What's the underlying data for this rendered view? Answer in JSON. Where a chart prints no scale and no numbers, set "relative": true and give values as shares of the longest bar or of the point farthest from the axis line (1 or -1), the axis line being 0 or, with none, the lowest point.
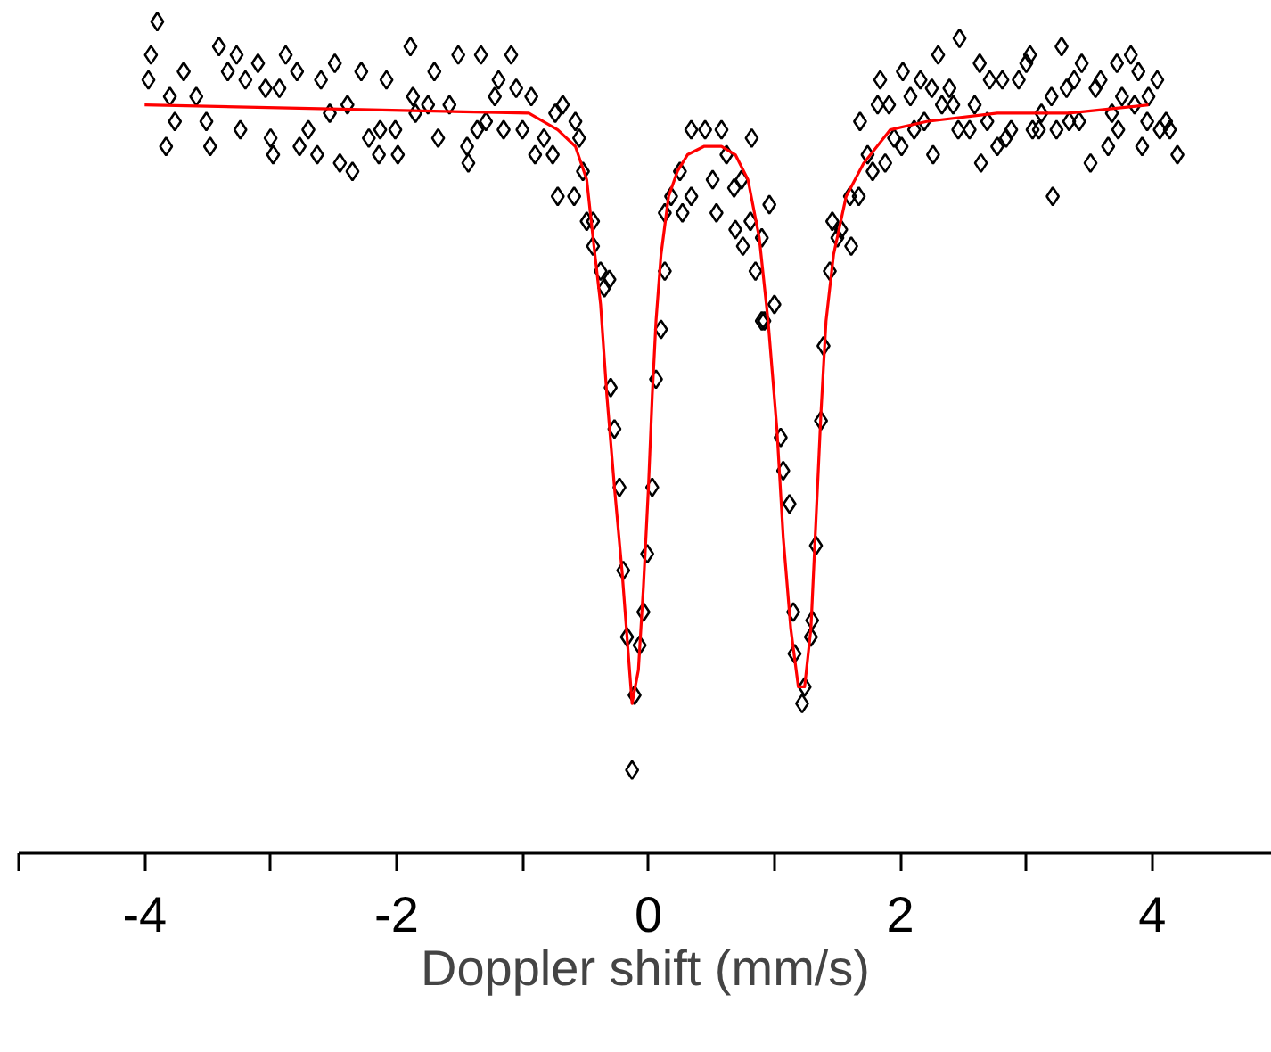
{
  "chart_data": {
    "type": "scatter",
    "xlabel": "Doppler shift (mm/s)",
    "relative": true,
    "grid": false,
    "xlim": [
      -5,
      4.95
    ],
    "xticks": [
      -4,
      -2,
      0,
      2,
      4
    ],
    "tick_labels": "x",
    "series": [
      {
        "color": "#000000",
        "marker": "diamond",
        "x": [
          -3.97,
          -3.95,
          -3.9,
          -3.83,
          -3.8,
          -3.76,
          -3.69,
          -3.59,
          -3.51,
          -3.48,
          -3.41,
          -3.34,
          -3.27,
          -3.24,
          -3.2,
          -3.1,
          -3.04,
          -3.0,
          -2.98,
          -2.93,
          -2.88,
          -2.79,
          -2.77,
          -2.7,
          -2.63,
          -2.6,
          -2.53,
          -2.49,
          -2.45,
          -2.39,
          -2.35,
          -2.28,
          -2.22,
          -2.14,
          -2.13,
          -2.08,
          -2.01,
          -1.99,
          -1.89,
          -1.87,
          -1.85,
          -1.75,
          -1.7,
          -1.67,
          -1.58,
          -1.51,
          -1.44,
          -1.43,
          -1.36,
          -1.33,
          -1.29,
          -1.22,
          -1.19,
          -1.15,
          -1.09,
          -1.05,
          -1.0,
          -0.93,
          -0.9,
          -0.83,
          -0.76,
          -0.74,
          -0.72,
          -0.68,
          -0.59,
          -0.58,
          -0.55,
          -0.52,
          -0.49,
          -0.44,
          -0.44,
          -0.38,
          -0.35,
          -0.31,
          -0.3,
          -0.27,
          -0.23,
          -0.2,
          -0.17,
          -0.13,
          -0.11,
          -0.07,
          -0.04,
          -0.01,
          0.03,
          0.06,
          0.1,
          0.13,
          0.13,
          0.18,
          0.25,
          0.27,
          0.34,
          0.34,
          0.45,
          0.51,
          0.54,
          0.58,
          0.62,
          0.68,
          0.69,
          0.74,
          0.75,
          0.81,
          0.82,
          0.85,
          0.9,
          0.9,
          0.92,
          0.96,
          1.0,
          1.05,
          1.07,
          1.12,
          1.15,
          1.16,
          1.22,
          1.24,
          1.29,
          1.3,
          1.33,
          1.37,
          1.39,
          1.44,
          1.46,
          1.5,
          1.53,
          1.6,
          1.61,
          1.67,
          1.68,
          1.74,
          1.78,
          1.82,
          1.84,
          1.88,
          1.91,
          1.95,
          2.01,
          2.02,
          2.08,
          2.11,
          2.16,
          2.19,
          2.25,
          2.26,
          2.3,
          2.33,
          2.39,
          2.42,
          2.46,
          2.47,
          2.55,
          2.59,
          2.63,
          2.64,
          2.69,
          2.71,
          2.77,
          2.81,
          2.84,
          2.88,
          2.94,
          3.0,
          3.03,
          3.05,
          3.1,
          3.12,
          3.2,
          3.21,
          3.24,
          3.28,
          3.32,
          3.34,
          3.38,
          3.42,
          3.44,
          3.51,
          3.55,
          3.59,
          3.65,
          3.68,
          3.72,
          3.73,
          3.76,
          3.83,
          3.86,
          3.89,
          3.92,
          3.96,
          3.97,
          4.04,
          4.06,
          4.11,
          4.14,
          4.2
        ],
        "values": [
          0.93,
          0.96,
          1.0,
          0.85,
          0.91,
          0.88,
          0.94,
          0.91,
          0.88,
          0.85,
          0.97,
          0.94,
          0.96,
          0.87,
          0.93,
          0.95,
          0.92,
          0.86,
          0.84,
          0.92,
          0.96,
          0.94,
          0.85,
          0.87,
          0.84,
          0.93,
          0.89,
          0.95,
          0.83,
          0.9,
          0.82,
          0.94,
          0.86,
          0.84,
          0.87,
          0.93,
          0.87,
          0.84,
          0.97,
          0.91,
          0.89,
          0.9,
          0.94,
          0.86,
          0.9,
          0.96,
          0.85,
          0.83,
          0.87,
          0.96,
          0.88,
          0.91,
          0.93,
          0.87,
          0.96,
          0.92,
          0.87,
          0.91,
          0.84,
          0.86,
          0.84,
          0.89,
          0.79,
          0.9,
          0.79,
          0.88,
          0.86,
          0.82,
          0.76,
          0.76,
          0.73,
          0.7,
          0.68,
          0.69,
          0.56,
          0.51,
          0.44,
          0.34,
          0.26,
          0.1,
          0.19,
          0.25,
          0.29,
          0.36,
          0.44,
          0.57,
          0.63,
          0.7,
          0.77,
          0.79,
          0.82,
          0.77,
          0.87,
          0.79,
          0.87,
          0.81,
          0.77,
          0.87,
          0.84,
          0.8,
          0.75,
          0.81,
          0.73,
          0.76,
          0.86,
          0.7,
          0.74,
          0.64,
          0.64,
          0.78,
          0.66,
          0.5,
          0.46,
          0.42,
          0.29,
          0.24,
          0.18,
          0.2,
          0.26,
          0.28,
          0.37,
          0.52,
          0.61,
          0.7,
          0.76,
          0.74,
          0.75,
          0.79,
          0.73,
          0.79,
          0.88,
          0.84,
          0.82,
          0.9,
          0.93,
          0.83,
          0.9,
          0.86,
          0.85,
          0.94,
          0.91,
          0.87,
          0.93,
          0.88,
          0.92,
          0.84,
          0.96,
          0.9,
          0.92,
          0.9,
          0.87,
          0.98,
          0.87,
          0.9,
          0.95,
          0.83,
          0.88,
          0.93,
          0.85,
          0.93,
          0.86,
          0.87,
          0.93,
          0.95,
          0.96,
          0.87,
          0.87,
          0.89,
          0.91,
          0.79,
          0.87,
          0.97,
          0.92,
          0.88,
          0.93,
          0.88,
          0.95,
          0.83,
          0.92,
          0.93,
          0.85,
          0.89,
          0.95,
          0.87,
          0.91,
          0.96,
          0.9,
          0.94,
          0.85,
          0.88,
          0.91,
          0.93,
          0.87,
          0.88,
          0.87,
          0.84
        ]
      },
      {
        "type": "line",
        "color": "#ff0000",
        "x": [
          -4.0,
          -0.95,
          -0.72,
          -0.58,
          -0.49,
          -0.44,
          -0.38,
          -0.33,
          -0.27,
          -0.21,
          -0.17,
          -0.13,
          -0.08,
          -0.04,
          0.0,
          0.03,
          0.06,
          0.1,
          0.16,
          0.23,
          0.31,
          0.44,
          0.58,
          0.69,
          0.79,
          0.88,
          0.95,
          1.02,
          1.07,
          1.13,
          1.19,
          1.24,
          1.29,
          1.33,
          1.37,
          1.41,
          1.47,
          1.57,
          1.71,
          1.92,
          2.21,
          2.77,
          3.34,
          3.97
        ],
        "values": [
          0.9,
          0.89,
          0.87,
          0.85,
          0.81,
          0.74,
          0.66,
          0.55,
          0.44,
          0.34,
          0.26,
          0.18,
          0.22,
          0.32,
          0.44,
          0.55,
          0.64,
          0.72,
          0.79,
          0.82,
          0.84,
          0.85,
          0.85,
          0.84,
          0.81,
          0.74,
          0.64,
          0.51,
          0.38,
          0.27,
          0.2,
          0.2,
          0.27,
          0.4,
          0.53,
          0.64,
          0.72,
          0.79,
          0.83,
          0.87,
          0.88,
          0.89,
          0.89,
          0.9
        ]
      }
    ]
  }
}
